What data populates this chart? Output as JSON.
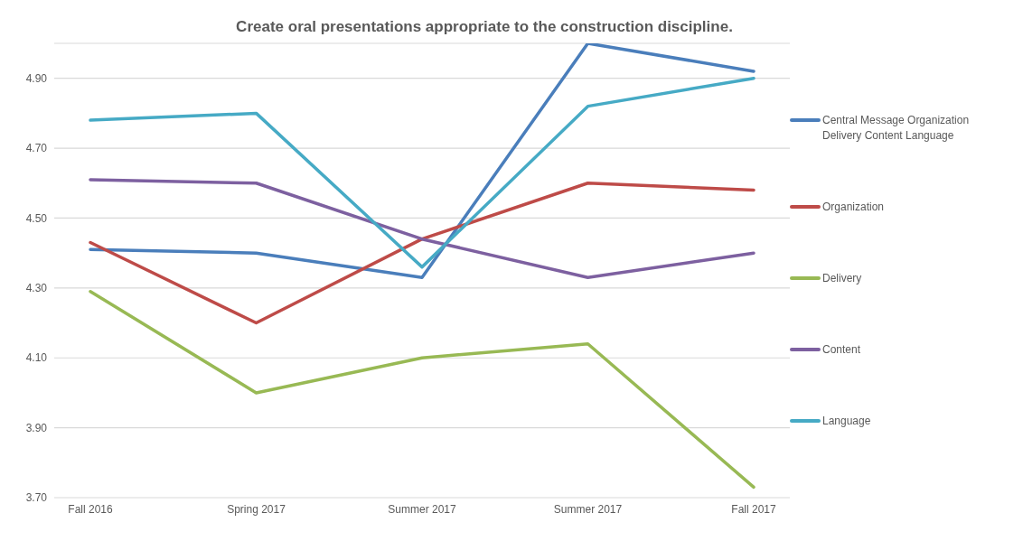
{
  "chart_data": {
    "type": "line",
    "title": "Create oral presentations appropriate to the construction discipline.",
    "categories": [
      "Fall 2016",
      "Spring 2017",
      "Summer 2017",
      "Summer 2017",
      "Fall 2017"
    ],
    "series": [
      {
        "name": "Central Message Organization Delivery Content Language",
        "color": "#4a7ebb",
        "values": [
          4.41,
          4.4,
          4.33,
          5.0,
          4.92
        ]
      },
      {
        "name": "Organization",
        "color": "#be4b48",
        "values": [
          4.43,
          4.2,
          4.44,
          4.6,
          4.58
        ]
      },
      {
        "name": "Delivery",
        "color": "#98b954",
        "values": [
          4.29,
          4.0,
          4.1,
          4.14,
          3.73
        ]
      },
      {
        "name": "Content",
        "color": "#7d60a0",
        "values": [
          4.61,
          4.6,
          4.44,
          4.33,
          4.4
        ]
      },
      {
        "name": "Language",
        "color": "#46aac5",
        "values": [
          4.78,
          4.8,
          4.36,
          4.82,
          4.9
        ]
      }
    ],
    "ylim": [
      3.7,
      5.0
    ],
    "yticks": [
      {
        "value": 3.7,
        "label": "3.70"
      },
      {
        "value": 3.9,
        "label": "3.90"
      },
      {
        "value": 4.1,
        "label": "4.10"
      },
      {
        "value": 4.3,
        "label": "4.30"
      },
      {
        "value": 4.5,
        "label": "4.50"
      },
      {
        "value": 4.7,
        "label": "4.70"
      },
      {
        "value": 4.9,
        "label": "4.90"
      }
    ],
    "grid": "y",
    "legend": "right",
    "marker": "none",
    "line_style": "solid"
  }
}
